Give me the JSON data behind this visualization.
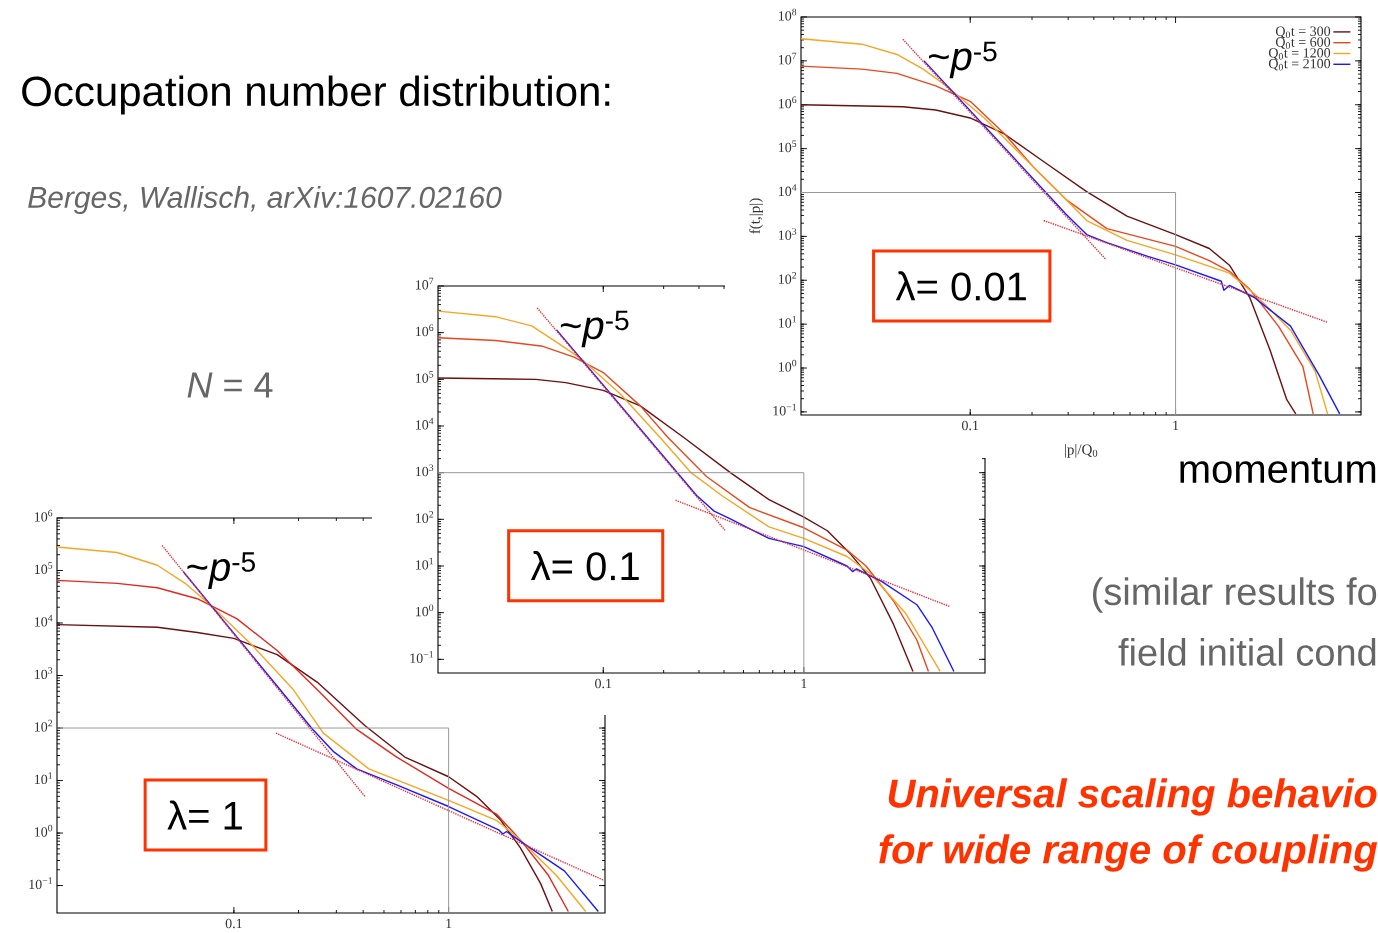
{
  "chart_data": [
    {
      "type": "other",
      "title": "Occupation number distribution:",
      "annotations": [
        "Berges, Wallisch, arXiv:1607.02160",
        "*N* = 4",
        "momentum",
        "(similar results fo",
        "field initial cond",
        "Universal scaling behavio",
        "for wide range of coupling"
      ]
    },
    {
      "type": "line",
      "log": "xy",
      "xlabel": "|p|/Q$_{0}$",
      "ylabel": "f(t,|p|)",
      "legend": "top right",
      "xlim": [
        0.015,
        8
      ],
      "ylim": [
        0.085,
        100000000
      ],
      "xticks": [
        0.1,
        1
      ],
      "yticks": [
        {
          "value": 0.1,
          "label": "10$^{−1}$"
        },
        {
          "value": 1,
          "label": "10$^{0}$"
        },
        {
          "value": 10,
          "label": "10$^{1}$"
        },
        {
          "value": 100,
          "label": "10$^{2}$"
        },
        {
          "value": 1000,
          "label": "10$^{3}$"
        },
        {
          "value": 10000,
          "label": "10$^{4}$"
        },
        {
          "value": 100000,
          "label": "10$^{5}$"
        },
        {
          "value": 1000000,
          "label": "10$^{6}$"
        },
        {
          "value": 10000000,
          "label": "10$^{7}$"
        },
        {
          "value": 100000000,
          "label": "10$^{8}$"
        }
      ],
      "annotations": [
        {
          "text": "~*p*$^{-5}$",
          "x": 0.06,
          "y": 10000000
        },
        "λ= 0.01"
      ],
      "series": [
        {
          "name": "Q$_{0}$t = 300",
          "type": "line",
          "color": "#6b1010",
          "x": [
            0.015,
            0.047,
            0.068,
            0.1,
            0.148,
            0.233,
            0.369,
            0.58,
            1,
            1.46,
            1.83,
            2.3,
            2.89,
            3.48,
            3.85
          ],
          "values": [
            1000000,
            900000,
            760000,
            500000,
            210000,
            47000,
            10500,
            2900,
            1100,
            530,
            220,
            40,
            2.5,
            0.19,
            0.09
          ]
        },
        {
          "name": "Q$_{0}$t = 600",
          "type": "line",
          "color": "#e8481e",
          "x": [
            0.015,
            0.0297,
            0.044,
            0.068,
            0.1,
            0.148,
            0.203,
            0.293,
            0.463,
            1,
            1.46,
            1.83,
            2.3,
            3.17,
            4.17,
            4.68
          ],
          "values": [
            7600000,
            6500000,
            5200000,
            2700000,
            1200000,
            210000,
            38000,
            6900,
            1500,
            590,
            280,
            160,
            62,
            9,
            1.07,
            0.09
          ]
        },
        {
          "name": "Q$_{0}$t = 1200",
          "type": "line",
          "color": "#f5a623",
          "x": [
            0.015,
            0.0297,
            0.044,
            0.059,
            0.078,
            0.117,
            0.185,
            0.268,
            0.369,
            0.58,
            1,
            1.83,
            2.41,
            3.63,
            4.78,
            5.5
          ],
          "values": [
            32000000,
            24000000,
            14000000,
            6500000,
            2500000,
            500000,
            59000,
            10500,
            2300,
            810,
            380,
            145,
            50,
            7.3,
            0.85,
            0.09
          ]
        },
        {
          "name": "Q$_{0}$t = 2100",
          "type": "line",
          "color": "#1a1aff",
          "x": [
            0.0596,
            0.293,
            0.369,
            0.463,
            0.733,
            1,
            1.67,
            1.72,
            1.83,
            2.41,
            3.63,
            5.0,
            6.3
          ],
          "values": [
            10000000,
            3200,
            1100,
            720,
            350,
            225,
            95,
            59,
            76,
            41,
            9,
            0.69,
            0.09
          ]
        },
        {
          "type": "line",
          "line_style": "dotted",
          "color": "#e8303a",
          "x": [
            0.047,
            0.459
          ],
          "values": [
            31000000,
            295
          ]
        },
        {
          "type": "line",
          "line_style": "dotted",
          "color": "#e8303a",
          "x": [
            0.228,
            5.5
          ],
          "values": [
            2300,
            11
          ]
        },
        {
          "type": "line",
          "color": "#999999",
          "x": [
            0.015,
            1,
            1
          ],
          "values": [
            10000,
            10000,
            0.085
          ]
        }
      ]
    },
    {
      "type": "line",
      "log": "xy",
      "xlim": [
        0.015,
        8
      ],
      "ylim": [
        0.051,
        10000000
      ],
      "xticks": [
        0.1,
        1
      ],
      "yticks": [
        {
          "value": 0.1,
          "label": "10$^{−1}$"
        },
        {
          "value": 1,
          "label": "10$^{0}$"
        },
        {
          "value": 10,
          "label": "10$^{1}$"
        },
        {
          "value": 100,
          "label": "10$^{2}$"
        },
        {
          "value": 1000,
          "label": "10$^{3}$"
        },
        {
          "value": 10000,
          "label": "10$^{4}$"
        },
        {
          "value": 100000,
          "label": "10$^{5}$"
        },
        {
          "value": 1000000,
          "label": "10$^{6}$"
        },
        {
          "value": 10000000,
          "label": "10$^{7}$"
        }
      ],
      "annotations": [
        {
          "text": "~*p*$^{-5}$",
          "x": 0.0585,
          "y": 1150000
        },
        "λ= 0.1"
      ],
      "series": [
        {
          "type": "line",
          "color": "#6b1010",
          "x": [
            0.015,
            0.046,
            0.065,
            0.1,
            0.153,
            0.25,
            0.43,
            0.67,
            1,
            1.31,
            1.71,
            2.14,
            2.8,
            3.5
          ],
          "values": [
            107000,
            100000,
            85000,
            58000,
            27000,
            5800,
            1000,
            265,
            112,
            57,
            18,
            5.6,
            0.56,
            0.055
          ]
        },
        {
          "type": "line",
          "color": "#e8481e",
          "x": [
            0.015,
            0.029,
            0.05,
            0.0715,
            0.1,
            0.153,
            0.209,
            0.327,
            0.535,
            1,
            1.64,
            2.04,
            2.8,
            3.66,
            4.18
          ],
          "values": [
            780000,
            680000,
            510000,
            300000,
            140000,
            27000,
            5800,
            830,
            180,
            66,
            22,
            10,
            1.78,
            0.26,
            0.055
          ]
        },
        {
          "type": "line",
          "color": "#f5a623",
          "x": [
            0.015,
            0.029,
            0.044,
            0.06,
            0.078,
            0.122,
            0.191,
            0.274,
            0.391,
            0.67,
            1,
            1.64,
            2.14,
            3.2,
            4.78
          ],
          "values": [
            2900000,
            2200000,
            1400000,
            580000,
            270000,
            48000,
            5800,
            1000,
            320,
            69,
            39,
            16,
            6.9,
            1.0,
            0.055
          ]
        },
        {
          "type": "line",
          "color": "#1a1aff",
          "x": [
            0.0585,
            0.292,
            0.357,
            0.43,
            0.67,
            1,
            1.64,
            1.75,
            1.83,
            2.44,
            3.66,
            4.37,
            5.6
          ],
          "values": [
            1150000,
            325,
            150,
            102,
            39,
            26,
            10,
            7.6,
            8.7,
            4.7,
            1.48,
            0.47,
            0.055
          ]
        },
        {
          "type": "line",
          "line_style": "dotted",
          "color": "#e8303a",
          "x": [
            0.0468,
            0.405
          ],
          "values": [
            3400000,
            58
          ]
        },
        {
          "type": "line",
          "line_style": "dotted",
          "color": "#e8303a",
          "x": [
            0.229,
            5.35
          ],
          "values": [
            257,
            1.35
          ]
        },
        {
          "type": "line",
          "color": "#999999",
          "x": [
            0.015,
            1,
            1
          ],
          "values": [
            1000,
            1000,
            0.051
          ]
        }
      ]
    },
    {
      "type": "line",
      "log": "xy",
      "xlim": [
        0.015,
        5.35
      ],
      "ylim": [
        0.03,
        1000000
      ],
      "xticks": [
        0.1,
        1
      ],
      "yticks": [
        {
          "value": 0.1,
          "label": "10$^{−1}$"
        },
        {
          "value": 1,
          "label": "10$^{0}$"
        },
        {
          "value": 10,
          "label": "10$^{1}$"
        },
        {
          "value": 100,
          "label": "10$^{2}$"
        },
        {
          "value": 1000,
          "label": "10$^{3}$"
        },
        {
          "value": 10000,
          "label": "10$^{4}$"
        },
        {
          "value": 100000,
          "label": "10$^{5}$"
        },
        {
          "value": 1000000,
          "label": "10$^{6}$"
        }
      ],
      "annotations": [
        {
          "text": "~*p*$^{-5}$",
          "x": 0.058,
          "y": 96000
        },
        "λ= 1"
      ],
      "series": [
        {
          "type": "line",
          "color": "#6b1010",
          "x": [
            0.015,
            0.044,
            0.0675,
            0.1,
            0.159,
            0.244,
            0.407,
            0.625,
            1,
            1.35,
            1.75,
            2.16,
            2.68,
            3.04
          ],
          "values": [
            9300,
            8300,
            6600,
            5100,
            2500,
            750,
            112,
            28,
            11.8,
            5,
            1.75,
            0.52,
            0.11,
            0.032
          ]
        },
        {
          "type": "line",
          "color": "#e02a1e",
          "x": [
            0.015,
            0.0286,
            0.044,
            0.0675,
            0.1035,
            0.159,
            0.244,
            0.373,
            0.573,
            1,
            1.67,
            2.16,
            2.92,
            3.61
          ],
          "values": [
            65000,
            57000,
            47000,
            29000,
            12000,
            3000,
            540,
            94,
            28,
            7.1,
            2.3,
            0.74,
            0.155,
            0.032
          ]
        },
        {
          "type": "line",
          "color": "#f5a623",
          "x": [
            0.015,
            0.0286,
            0.044,
            0.0593,
            0.0799,
            0.123,
            0.189,
            0.261,
            0.425,
            1,
            1.67,
            2.16,
            3.18,
            4.35
          ],
          "values": [
            280000,
            220000,
            126000,
            57000,
            20000,
            3600,
            540,
            80,
            16.7,
            4.2,
            1.75,
            0.74,
            0.155,
            0.032
          ]
        },
        {
          "type": "line",
          "color": "#1a1aff",
          "x": [
            0.058,
            0.233,
            0.29,
            0.373,
            0.573,
            1,
            1.71,
            1.79,
            1.86,
            2.25,
            3.46,
            4.98
          ],
          "values": [
            96000,
            94,
            36,
            16.7,
            8.3,
            3.2,
            1.15,
            0.96,
            1.07,
            0.62,
            0.19,
            0.032
          ]
        },
        {
          "type": "line",
          "line_style": "dotted",
          "color": "#e8303a",
          "x": [
            0.0463,
            0.407
          ],
          "values": [
            300000,
            5
          ]
        },
        {
          "type": "line",
          "line_style": "dotted",
          "color": "#e8303a",
          "x": [
            0.157,
            5.3
          ],
          "values": [
            80,
            0.125
          ]
        },
        {
          "type": "line",
          "color": "#999999",
          "x": [
            0.015,
            1,
            1
          ],
          "values": [
            100,
            100,
            0.03
          ]
        }
      ]
    }
  ]
}
